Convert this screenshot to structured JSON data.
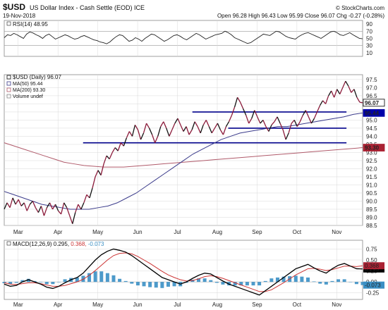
{
  "header": {
    "symbol": "$USD",
    "name": "US Dollar Index - Cash Settle (EOD) ICE",
    "date": "19-Nov-2018",
    "watermark": "© StockCharts.com",
    "quote": "Open 96.28  High 96.43  Low 95.99  Close 96.07  Chg -0.27 (-0.28%)",
    "quote_down_color": "#cc0000"
  },
  "colors": {
    "price": "#8b1a3a",
    "price_flat": "#111111",
    "ma50": "#3a3a8a",
    "ma200": "#b05a6a",
    "trendline": "#00008b",
    "macd": "#000000",
    "signal": "#cc3333",
    "hist": "#3a8fc4",
    "rsi": "#222222",
    "rsi_fill_hi": "#2e8b57",
    "rsi_fill_lo": "#7a9fcf",
    "grid": "#d8d8d8",
    "label_blue_bg": "#0000aa",
    "label_red_bg": "#aa2233",
    "label_black_bg": "#000000",
    "macd_neg_label": "#3a8fc4"
  },
  "chart_data": [
    {
      "type": "line",
      "panel": "rsi",
      "legend": "RSI(14) 48.95",
      "ylim": [
        0,
        100
      ],
      "yticks": [
        10,
        30,
        50,
        70,
        90
      ],
      "levels": [
        30,
        70
      ],
      "values": [
        52,
        60,
        58,
        64,
        60,
        55,
        50,
        62,
        68,
        65,
        60,
        56,
        50,
        58,
        62,
        55,
        48,
        52,
        56,
        60,
        57,
        52,
        48,
        50,
        55,
        58,
        54,
        50,
        46,
        44,
        40,
        38,
        35,
        40,
        48,
        55,
        60,
        58,
        50,
        42,
        45,
        52,
        48,
        42,
        50,
        56,
        62,
        60,
        54,
        48,
        42,
        46,
        52,
        58,
        60,
        56,
        50,
        46,
        52,
        58,
        64,
        60,
        54,
        48,
        52,
        56,
        60,
        62,
        64,
        70,
        66,
        60,
        52,
        48,
        44,
        40,
        36,
        38,
        44,
        50,
        56,
        62,
        60,
        58,
        64,
        70,
        68,
        62,
        56,
        52,
        50,
        48,
        55,
        60,
        64,
        66,
        62,
        58,
        54,
        50,
        56,
        62,
        68,
        70,
        66,
        60,
        58,
        62,
        66,
        60,
        55,
        50,
        49
      ]
    },
    {
      "type": "line",
      "panel": "price",
      "legend": [
        {
          "text": "$USD (Daily) 96.07",
          "swatch": "#111111"
        },
        {
          "text": "MA(50) 95.44",
          "swatch": "#3a3a8a"
        },
        {
          "text": "MA(200) 93.30",
          "swatch": "#b05a6a"
        },
        {
          "text": "Volume undef",
          "swatch": "#888888"
        }
      ],
      "xlabels": [
        "Mar",
        "Apr",
        "May",
        "Jun",
        "Jul",
        "Aug",
        "Sep",
        "Oct",
        "Nov"
      ],
      "ylim": [
        88.5,
        97.8
      ],
      "yticks": [
        88.5,
        89.0,
        89.5,
        90.0,
        90.5,
        91.0,
        91.5,
        92.0,
        92.5,
        93.0,
        93.5,
        94.0,
        94.5,
        95.0,
        95.5,
        96.0,
        96.5,
        97.0,
        97.5
      ],
      "series": [
        {
          "name": "$USD (Daily)",
          "values": [
            89.5,
            89.9,
            89.6,
            90.2,
            89.8,
            90.1,
            89.7,
            89.9,
            89.4,
            89.8,
            90.0,
            89.6,
            89.3,
            89.7,
            89.1,
            89.6,
            89.9,
            89.5,
            89.8,
            89.4,
            89.2,
            89.9,
            89.6,
            89.1,
            88.6,
            89.3,
            89.8,
            89.5,
            89.9,
            90.4,
            90.2,
            90.8,
            91.5,
            91.9,
            91.6,
            92.3,
            92.8,
            92.6,
            93.0,
            93.3,
            93.1,
            93.6,
            93.4,
            93.9,
            94.3,
            94.0,
            94.7,
            94.4,
            93.8,
            94.2,
            94.8,
            94.5,
            94.1,
            93.6,
            94.0,
            94.6,
            94.9,
            94.5,
            94.0,
            94.4,
            94.8,
            95.1,
            94.7,
            94.3,
            94.6,
            94.1,
            94.4,
            94.9,
            94.6,
            94.2,
            94.7,
            95.0,
            94.6,
            94.2,
            94.5,
            94.8,
            94.4,
            94.1,
            94.6,
            94.9,
            95.3,
            95.8,
            96.4,
            96.1,
            95.7,
            95.3,
            94.8,
            95.1,
            95.6,
            95.2,
            94.8,
            95.0,
            94.6,
            94.3,
            94.7,
            94.9,
            95.2,
            94.8,
            94.4,
            93.8,
            94.2,
            94.8,
            95.0,
            94.6,
            94.9,
            95.3,
            95.6,
            95.2,
            94.8,
            95.1,
            95.5,
            95.9,
            96.2,
            96.0,
            96.5,
            96.8,
            96.4,
            96.9,
            96.6,
            97.0,
            97.4,
            97.1,
            96.7,
            96.9,
            96.4,
            96.1,
            96.07
          ]
        },
        {
          "name": "MA(50)",
          "values": [
            90.6,
            90.4,
            90.2,
            90.0,
            89.8,
            89.7,
            89.6,
            89.5,
            89.5,
            89.5,
            89.6,
            89.7,
            89.9,
            90.2,
            90.5,
            90.9,
            91.3,
            91.7,
            92.1,
            92.5,
            92.9,
            93.2,
            93.5,
            93.8,
            94.0,
            94.2,
            94.3,
            94.4,
            94.5,
            94.6,
            94.6,
            94.7,
            94.8,
            94.9,
            95.0,
            95.1,
            95.2,
            95.35,
            95.44
          ]
        },
        {
          "name": "MA(200)",
          "values": [
            93.6,
            93.4,
            93.2,
            93.0,
            92.8,
            92.6,
            92.4,
            92.3,
            92.2,
            92.15,
            92.1,
            92.1,
            92.1,
            92.15,
            92.2,
            92.25,
            92.3,
            92.35,
            92.4,
            92.45,
            92.5,
            92.55,
            92.6,
            92.65,
            92.7,
            92.75,
            92.8,
            92.85,
            92.9,
            92.95,
            93.0,
            93.05,
            93.1,
            93.15,
            93.2,
            93.25,
            93.3
          ]
        }
      ],
      "last_labels": [
        {
          "value": "96.07",
          "style": "black-outline"
        },
        {
          "value": "95.44",
          "style": "blue"
        },
        {
          "value": "93.30",
          "style": "red"
        }
      ],
      "trendlines": [
        {
          "x": [
            0.525,
            0.955
          ],
          "y": [
            95.5,
            95.5
          ]
        },
        {
          "x": [
            0.625,
            0.955
          ],
          "y": [
            94.5,
            94.5
          ]
        },
        {
          "x": [
            0.22,
            0.955
          ],
          "y": [
            93.6,
            93.6
          ]
        }
      ]
    },
    {
      "type": "line",
      "panel": "macd",
      "legend_parts": [
        {
          "text": "MACD(12,26,9) 0.295, ",
          "color": "#111111"
        },
        {
          "text": "0.368, ",
          "color": "#cc3333"
        },
        {
          "text": "-0.073",
          "color": "#3a8fc4"
        }
      ],
      "ylim": [
        -0.4,
        0.95
      ],
      "yticks": [
        0.75,
        0.5,
        0.25,
        0.0,
        -0.25
      ],
      "series": [
        {
          "name": "MACD",
          "values": [
            -0.05,
            -0.1,
            -0.08,
            0.0,
            0.05,
            0.0,
            -0.05,
            -0.12,
            -0.15,
            -0.1,
            -0.02,
            0.05,
            0.1,
            0.2,
            0.35,
            0.5,
            0.62,
            0.7,
            0.75,
            0.72,
            0.68,
            0.6,
            0.5,
            0.4,
            0.3,
            0.2,
            0.1,
            0.05,
            0.0,
            -0.05,
            0.0,
            0.08,
            0.15,
            0.2,
            0.18,
            0.1,
            0.02,
            -0.05,
            -0.1,
            -0.15,
            -0.2,
            -0.25,
            -0.3,
            -0.2,
            -0.1,
            0.0,
            0.1,
            0.2,
            0.3,
            0.35,
            0.4,
            0.32,
            0.25,
            0.2,
            0.3,
            0.38,
            0.42,
            0.36,
            0.3,
            0.295
          ]
        },
        {
          "name": "Signal",
          "values": [
            -0.02,
            -0.05,
            -0.06,
            -0.04,
            -0.02,
            -0.02,
            -0.04,
            -0.07,
            -0.1,
            -0.1,
            -0.08,
            -0.04,
            0.0,
            0.06,
            0.15,
            0.26,
            0.38,
            0.5,
            0.6,
            0.65,
            0.66,
            0.64,
            0.58,
            0.5,
            0.42,
            0.33,
            0.24,
            0.16,
            0.1,
            0.05,
            0.02,
            0.03,
            0.07,
            0.12,
            0.14,
            0.12,
            0.08,
            0.03,
            -0.02,
            -0.07,
            -0.12,
            -0.17,
            -0.22,
            -0.22,
            -0.18,
            -0.1,
            -0.02,
            0.07,
            0.16,
            0.23,
            0.3,
            0.31,
            0.29,
            0.26,
            0.28,
            0.32,
            0.36,
            0.36,
            0.35,
            0.368
          ]
        }
      ]
    }
  ]
}
